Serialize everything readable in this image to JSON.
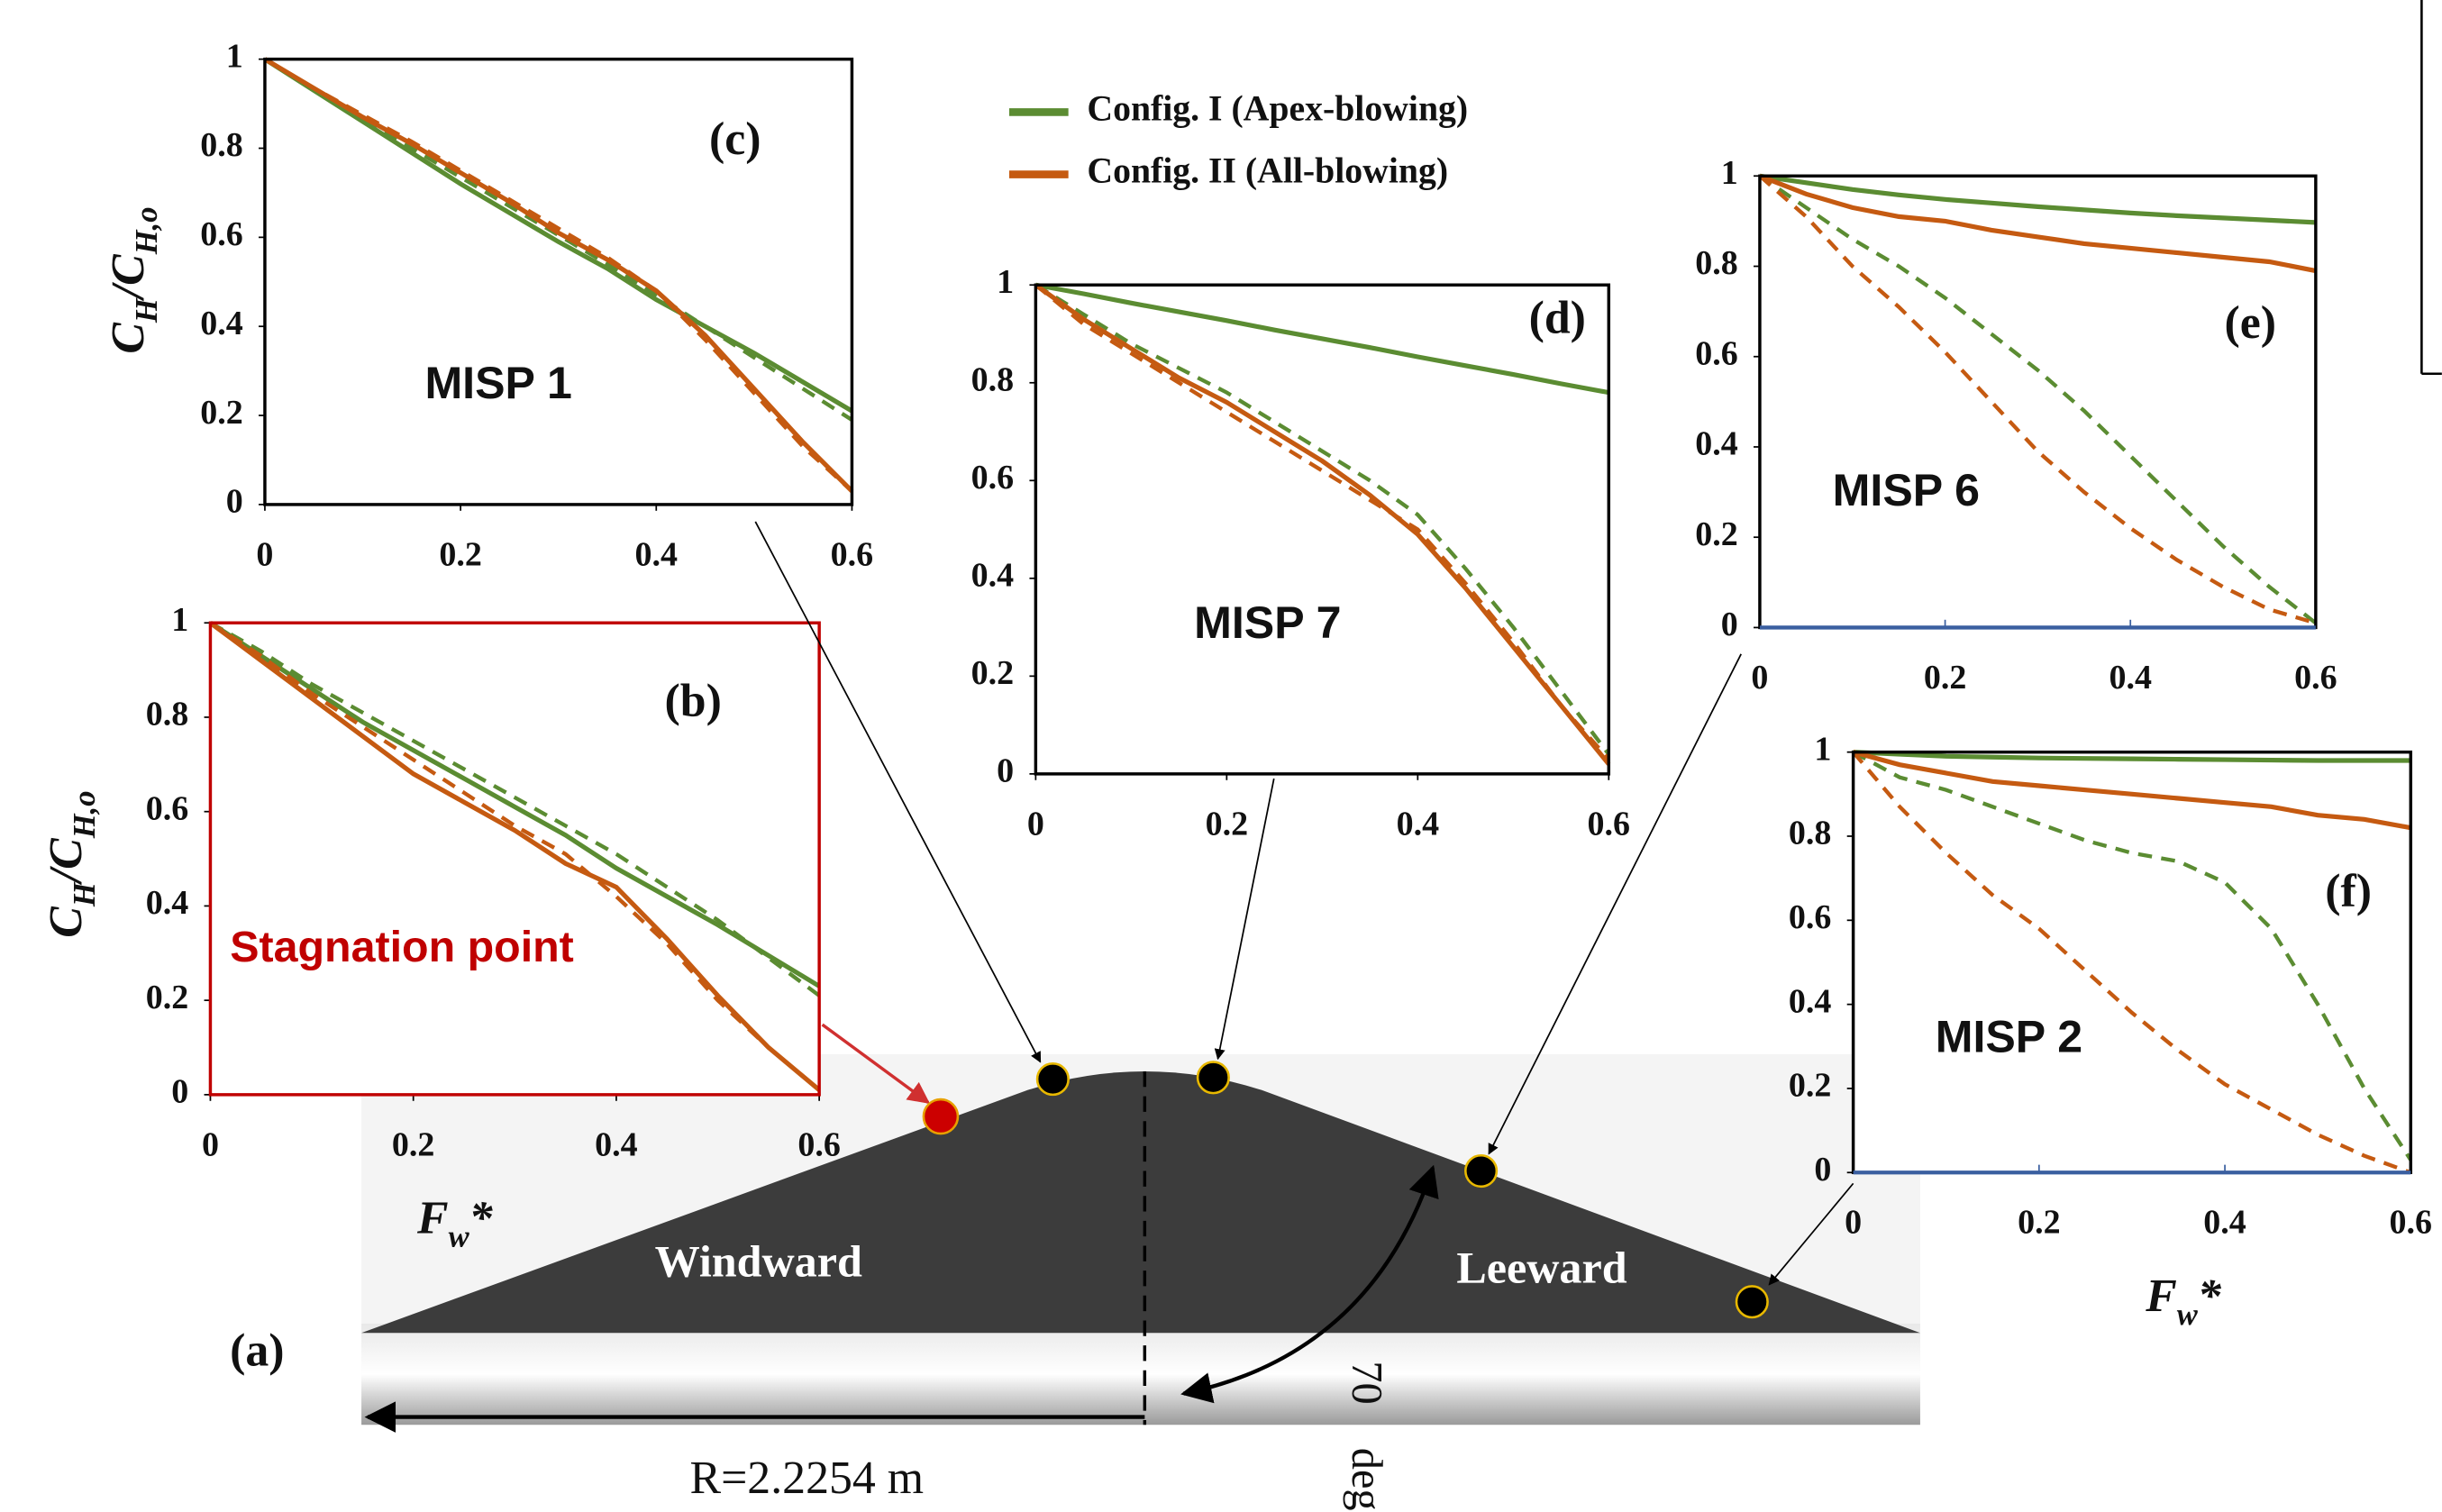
{
  "legend": [
    {
      "name": "Config. I (Apex-blowing)",
      "color": "#5b8c32"
    },
    {
      "name": "Config. II (All-blowing)",
      "color": "#c55a11"
    }
  ],
  "figure": {
    "panel_label": "(a)",
    "windward": "Windward",
    "leeward": "Leeward",
    "radius": "R=2.2254 m",
    "angle": "70",
    "angle_unit": "deg"
  },
  "chart_data": [
    {
      "type": "line",
      "panel_label": "(c)",
      "name": "MISP 1",
      "ylabel": [
        "C",
        "H",
        "/C",
        "H,o"
      ],
      "x": [
        0,
        0.05,
        0.1,
        0.15,
        0.2,
        0.25,
        0.3,
        0.35,
        0.4,
        0.45,
        0.5,
        0.55,
        0.6
      ],
      "xlim": [
        0,
        0.6
      ],
      "ylim": [
        0,
        1
      ],
      "xticks": [
        0,
        0.2,
        0.4,
        0.6
      ],
      "yticks": [
        0,
        0.2,
        0.4,
        0.6,
        0.8,
        1
      ],
      "series": [
        {
          "color": "#5b8c32",
          "dashed": false,
          "values": [
            1,
            0.93,
            0.86,
            0.79,
            0.72,
            0.655,
            0.59,
            0.53,
            0.46,
            0.4,
            0.34,
            0.275,
            0.21
          ]
        },
        {
          "color": "#5b8c32",
          "dashed": true,
          "values": [
            1,
            0.93,
            0.865,
            0.8,
            0.735,
            0.67,
            0.605,
            0.54,
            0.47,
            0.4,
            0.33,
            0.26,
            0.19
          ]
        },
        {
          "color": "#c55a11",
          "dashed": false,
          "values": [
            1,
            0.935,
            0.87,
            0.81,
            0.745,
            0.68,
            0.61,
            0.55,
            0.48,
            0.38,
            0.26,
            0.14,
            0.03
          ]
        },
        {
          "color": "#c55a11",
          "dashed": true,
          "values": [
            1,
            0.935,
            0.875,
            0.815,
            0.75,
            0.685,
            0.62,
            0.555,
            0.48,
            0.37,
            0.25,
            0.13,
            0.03
          ]
        }
      ]
    },
    {
      "type": "line",
      "panel_label": "(b)",
      "annotation": "Stagnation point",
      "frame_color": "#c00000",
      "ylabel": [
        "C",
        "H",
        "/C",
        "H,o"
      ],
      "xlabel": [
        "F",
        "w",
        "*"
      ],
      "x": [
        0,
        0.05,
        0.1,
        0.15,
        0.2,
        0.25,
        0.3,
        0.35,
        0.4,
        0.45,
        0.5,
        0.55,
        0.6
      ],
      "xlim": [
        0,
        0.6
      ],
      "ylim": [
        0,
        1
      ],
      "xticks": [
        0,
        0.2,
        0.4,
        0.6
      ],
      "yticks": [
        0,
        0.2,
        0.4,
        0.6,
        0.8,
        1
      ],
      "series": [
        {
          "color": "#5b8c32",
          "dashed": false,
          "values": [
            1,
            0.93,
            0.86,
            0.79,
            0.73,
            0.67,
            0.61,
            0.55,
            0.48,
            0.42,
            0.36,
            0.295,
            0.23
          ]
        },
        {
          "color": "#5b8c32",
          "dashed": true,
          "values": [
            1,
            0.94,
            0.87,
            0.81,
            0.75,
            0.69,
            0.63,
            0.57,
            0.51,
            0.44,
            0.37,
            0.29,
            0.21
          ]
        },
        {
          "color": "#c55a11",
          "dashed": false,
          "values": [
            1,
            0.92,
            0.84,
            0.76,
            0.68,
            0.62,
            0.56,
            0.49,
            0.44,
            0.33,
            0.21,
            0.1,
            0.01
          ]
        },
        {
          "color": "#c55a11",
          "dashed": true,
          "values": [
            1,
            0.93,
            0.85,
            0.78,
            0.71,
            0.64,
            0.57,
            0.51,
            0.42,
            0.32,
            0.2,
            0.1,
            0.01
          ]
        }
      ]
    },
    {
      "type": "line",
      "panel_label": "(d)",
      "name": "MISP 7",
      "x": [
        0,
        0.05,
        0.1,
        0.15,
        0.2,
        0.25,
        0.3,
        0.35,
        0.4,
        0.45,
        0.5,
        0.55,
        0.6
      ],
      "xlim": [
        0,
        0.6
      ],
      "ylim": [
        0,
        1
      ],
      "xticks": [
        0,
        0.2,
        0.4,
        0.6
      ],
      "yticks": [
        0,
        0.2,
        0.4,
        0.6,
        0.8,
        1
      ],
      "series": [
        {
          "color": "#5b8c32",
          "dashed": false,
          "values": [
            1,
            0.982,
            0.963,
            0.945,
            0.927,
            0.908,
            0.89,
            0.872,
            0.853,
            0.835,
            0.817,
            0.798,
            0.78
          ]
        },
        {
          "color": "#5b8c32",
          "dashed": true,
          "values": [
            1,
            0.94,
            0.88,
            0.83,
            0.78,
            0.72,
            0.66,
            0.6,
            0.53,
            0.42,
            0.3,
            0.17,
            0.04
          ]
        },
        {
          "color": "#c55a11",
          "dashed": false,
          "values": [
            1,
            0.93,
            0.87,
            0.81,
            0.76,
            0.7,
            0.64,
            0.57,
            0.49,
            0.38,
            0.26,
            0.14,
            0.02
          ]
        },
        {
          "color": "#c55a11",
          "dashed": true,
          "values": [
            1,
            0.92,
            0.86,
            0.8,
            0.74,
            0.68,
            0.62,
            0.56,
            0.5,
            0.39,
            0.27,
            0.14,
            0.03
          ]
        }
      ]
    },
    {
      "type": "line",
      "panel_label": "(e)",
      "name": "MISP 6",
      "x": [
        0,
        0.05,
        0.1,
        0.15,
        0.2,
        0.25,
        0.3,
        0.35,
        0.4,
        0.45,
        0.5,
        0.55,
        0.6
      ],
      "xlim": [
        0,
        0.6
      ],
      "ylim": [
        0,
        1
      ],
      "xticks": [
        0,
        0.2,
        0.4,
        0.6
      ],
      "yticks": [
        0,
        0.2,
        0.4,
        0.6,
        0.8,
        1
      ],
      "series": [
        {
          "color": "#5b8c32",
          "dashed": false,
          "values": [
            1,
            0.985,
            0.97,
            0.958,
            0.948,
            0.94,
            0.932,
            0.925,
            0.918,
            0.912,
            0.907,
            0.902,
            0.897
          ]
        },
        {
          "color": "#5b8c32",
          "dashed": true,
          "values": [
            1,
            0.93,
            0.86,
            0.8,
            0.73,
            0.65,
            0.57,
            0.48,
            0.38,
            0.28,
            0.18,
            0.09,
            0.01
          ]
        },
        {
          "color": "#c55a11",
          "dashed": false,
          "values": [
            1,
            0.96,
            0.93,
            0.91,
            0.9,
            0.88,
            0.865,
            0.85,
            0.84,
            0.83,
            0.82,
            0.81,
            0.79
          ]
        },
        {
          "color": "#c55a11",
          "dashed": true,
          "values": [
            1,
            0.91,
            0.8,
            0.71,
            0.61,
            0.5,
            0.39,
            0.3,
            0.22,
            0.15,
            0.09,
            0.04,
            0.01
          ]
        }
      ]
    },
    {
      "type": "line",
      "panel_label": "(f)",
      "name": "MISP 2",
      "xlabel": [
        "F",
        "w",
        "*"
      ],
      "x": [
        0,
        0.05,
        0.1,
        0.15,
        0.2,
        0.25,
        0.3,
        0.35,
        0.4,
        0.45,
        0.5,
        0.55,
        0.6
      ],
      "xlim": [
        0,
        0.6
      ],
      "ylim": [
        0,
        1
      ],
      "xticks": [
        0,
        0.2,
        0.4,
        0.6
      ],
      "yticks": [
        0,
        0.2,
        0.4,
        0.6,
        0.8,
        1
      ],
      "series": [
        {
          "color": "#5b8c32",
          "dashed": false,
          "values": [
            1,
            0.995,
            0.99,
            0.988,
            0.986,
            0.985,
            0.984,
            0.983,
            0.982,
            0.981,
            0.98,
            0.98,
            0.98
          ]
        },
        {
          "color": "#5b8c32",
          "dashed": true,
          "values": [
            1,
            0.94,
            0.91,
            0.87,
            0.83,
            0.79,
            0.76,
            0.74,
            0.69,
            0.58,
            0.4,
            0.2,
            0.03
          ]
        },
        {
          "color": "#c55a11",
          "dashed": false,
          "values": [
            1,
            0.97,
            0.95,
            0.93,
            0.92,
            0.91,
            0.9,
            0.89,
            0.88,
            0.87,
            0.85,
            0.84,
            0.82
          ]
        },
        {
          "color": "#c55a11",
          "dashed": true,
          "values": [
            1,
            0.87,
            0.76,
            0.66,
            0.58,
            0.48,
            0.38,
            0.29,
            0.21,
            0.15,
            0.09,
            0.04,
            0
          ]
        }
      ]
    }
  ]
}
